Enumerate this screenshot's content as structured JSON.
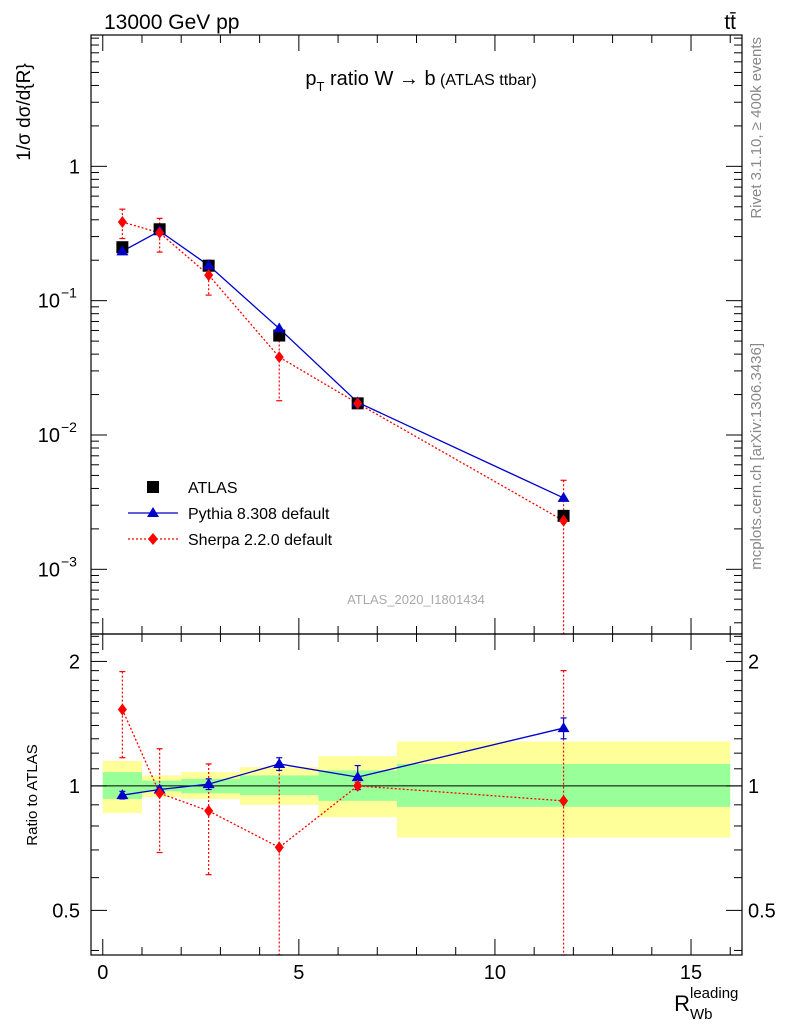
{
  "header": {
    "energy_label": "13000 GeV pp",
    "process_label": "tt̄"
  },
  "side_labels": {
    "rivet": "Rivet 3.1.10, ≥ 400k events",
    "mcplots": "mcplots.cern.ch [arXiv:1306.3436]"
  },
  "chart_data": {
    "type": "line",
    "title": "p_T ratio W → b (ATLAS ttbar)",
    "analysis_id": "ATLAS_2020_I1801434",
    "xlabel": "R_Wb^leading",
    "ylabel": "1/σ dσ^fid / d{R_Wb^leading}",
    "ratio_ylabel": "Ratio to ATLAS",
    "xlim": [
      -0.3,
      16.3
    ],
    "ylim_main": [
      0.00033,
      9.5
    ],
    "yscale_main": "log",
    "ylim_ratio": [
      0.39,
      2.33
    ],
    "yscale_ratio": "log",
    "x_ticks": [
      0,
      5,
      10,
      15
    ],
    "main_y_ticks": [
      {
        "value": 1,
        "label": "1"
      },
      {
        "value": 0.1,
        "label": "10",
        "exp": "−1"
      },
      {
        "value": 0.01,
        "label": "10",
        "exp": "−2"
      },
      {
        "value": 0.001,
        "label": "10",
        "exp": "−3"
      }
    ],
    "ratio_y_ticks": [
      {
        "value": 2,
        "label": "2"
      },
      {
        "value": 1,
        "label": "1"
      },
      {
        "value": 0.5,
        "label": "0.5"
      }
    ],
    "legend_placement": "lower-left",
    "bins": [
      [
        0,
        1
      ],
      [
        1,
        2
      ],
      [
        2,
        3.5
      ],
      [
        3.5,
        5.5
      ],
      [
        5.5,
        7.5
      ],
      [
        7.5,
        16
      ]
    ],
    "data_series": {
      "name": "ATLAS",
      "color": "#000000",
      "x": [
        0.5,
        1.45,
        2.7,
        4.5,
        6.5,
        11.75
      ],
      "y": [
        0.25,
        0.34,
        0.182,
        0.055,
        0.0172,
        0.0025
      ]
    },
    "band_1sigma": [
      0.93,
      0.97,
      0.96,
      0.95,
      0.92,
      0.89
    ],
    "band_1sigma_hi": [
      1.08,
      1.03,
      1.04,
      1.06,
      1.09,
      1.13
    ],
    "band_2sigma": [
      0.86,
      0.94,
      0.93,
      0.9,
      0.84,
      0.75
    ],
    "band_2sigma_hi": [
      1.15,
      1.06,
      1.08,
      1.11,
      1.18,
      1.28
    ],
    "series": [
      {
        "name": "Pythia 8.308 default",
        "color": "#0000cc",
        "marker": "triangle",
        "style": "solid",
        "x": [
          0.5,
          1.45,
          2.7,
          4.5,
          6.5,
          11.75
        ],
        "y": [
          0.233,
          0.33,
          0.183,
          0.062,
          0.0175,
          0.0034
        ],
        "ratio": [
          0.95,
          0.98,
          1.01,
          1.13,
          1.05,
          1.38
        ],
        "ratio_err": [
          0.02,
          0.02,
          0.03,
          0.04,
          0.07,
          0.08
        ]
      },
      {
        "name": "Sherpa 2.2.0 default",
        "color": "#ff0000",
        "marker": "diamond",
        "style": "dotted",
        "x": [
          0.5,
          1.45,
          2.7,
          4.5,
          6.5,
          11.75
        ],
        "y": [
          0.385,
          0.32,
          0.155,
          0.038,
          0.0172,
          0.0023
        ],
        "y_lo": [
          0.29,
          0.23,
          0.11,
          0.018,
          0.0165,
          0.0003
        ],
        "y_hi": [
          0.48,
          0.41,
          0.2,
          0.058,
          0.0179,
          0.0046
        ],
        "ratio": [
          1.53,
          0.96,
          0.87,
          0.71,
          1.0,
          0.92
        ],
        "ratio_lo": [
          1.17,
          0.69,
          0.61,
          0.3,
          0.98,
          0.3
        ],
        "ratio_hi": [
          1.89,
          1.23,
          1.13,
          1.12,
          1.02,
          1.9
        ]
      }
    ]
  }
}
